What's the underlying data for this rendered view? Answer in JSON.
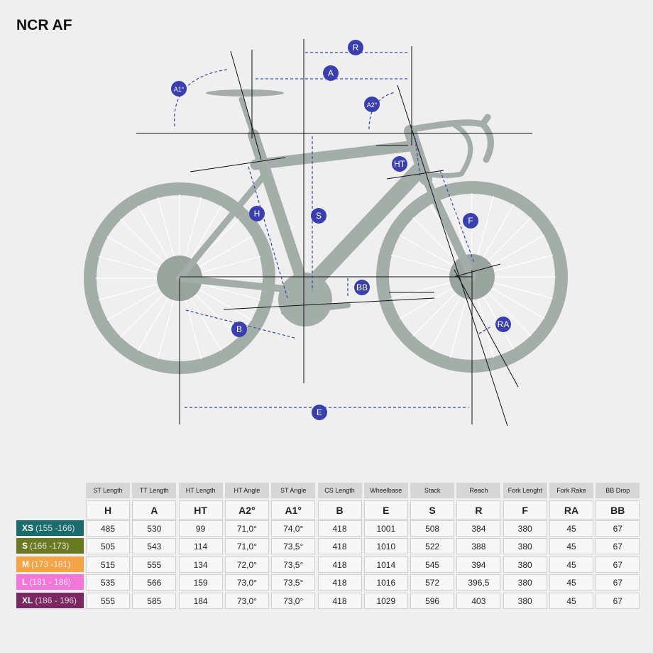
{
  "title": "NCR AF",
  "diagram": {
    "labels": [
      "R",
      "A",
      "A1°",
      "A2°",
      "HT",
      "H",
      "S",
      "F",
      "BB",
      "B",
      "RA",
      "E"
    ]
  },
  "table": {
    "headers": [
      "ST Length",
      "TT Length",
      "HT Length",
      "HT Angle",
      "ST Angle",
      "CS Length",
      "Wheelbase",
      "Stack",
      "Reach",
      "Fork Lenght",
      "Fork Rake",
      "BB Drop"
    ],
    "codes": [
      "H",
      "A",
      "HT",
      "A2°",
      "A1°",
      "B",
      "E",
      "S",
      "R",
      "F",
      "RA",
      "BB"
    ],
    "rows": [
      {
        "size": "XS",
        "range": "(155 -166)",
        "color": "#1c6b6c",
        "values": [
          "485",
          "530",
          "99",
          "71,0°",
          "74,0°",
          "418",
          "1001",
          "508",
          "384",
          "380",
          "45",
          "67"
        ]
      },
      {
        "size": "S",
        "range": "(166 -173)",
        "color": "#6a7a22",
        "values": [
          "505",
          "543",
          "114",
          "71,0°",
          "73,5°",
          "418",
          "1010",
          "522",
          "388",
          "380",
          "45",
          "67"
        ]
      },
      {
        "size": "M",
        "range": "(173 -181)",
        "color": "#f2a447",
        "values": [
          "515",
          "555",
          "134",
          "72,0°",
          "73,5°",
          "418",
          "1014",
          "545",
          "394",
          "380",
          "45",
          "67"
        ]
      },
      {
        "size": "L",
        "range": "(181 - 186)",
        "color": "#f277d8",
        "values": [
          "535",
          "566",
          "159",
          "73,0°",
          "73,5°",
          "418",
          "1016",
          "572",
          "396,5",
          "380",
          "45",
          "67"
        ]
      },
      {
        "size": "XL",
        "range": "(186 - 196)",
        "color": "#7a2661",
        "values": [
          "555",
          "585",
          "184",
          "73,0°",
          "73,0°",
          "418",
          "1029",
          "596",
          "403",
          "380",
          "45",
          "67"
        ]
      }
    ]
  }
}
